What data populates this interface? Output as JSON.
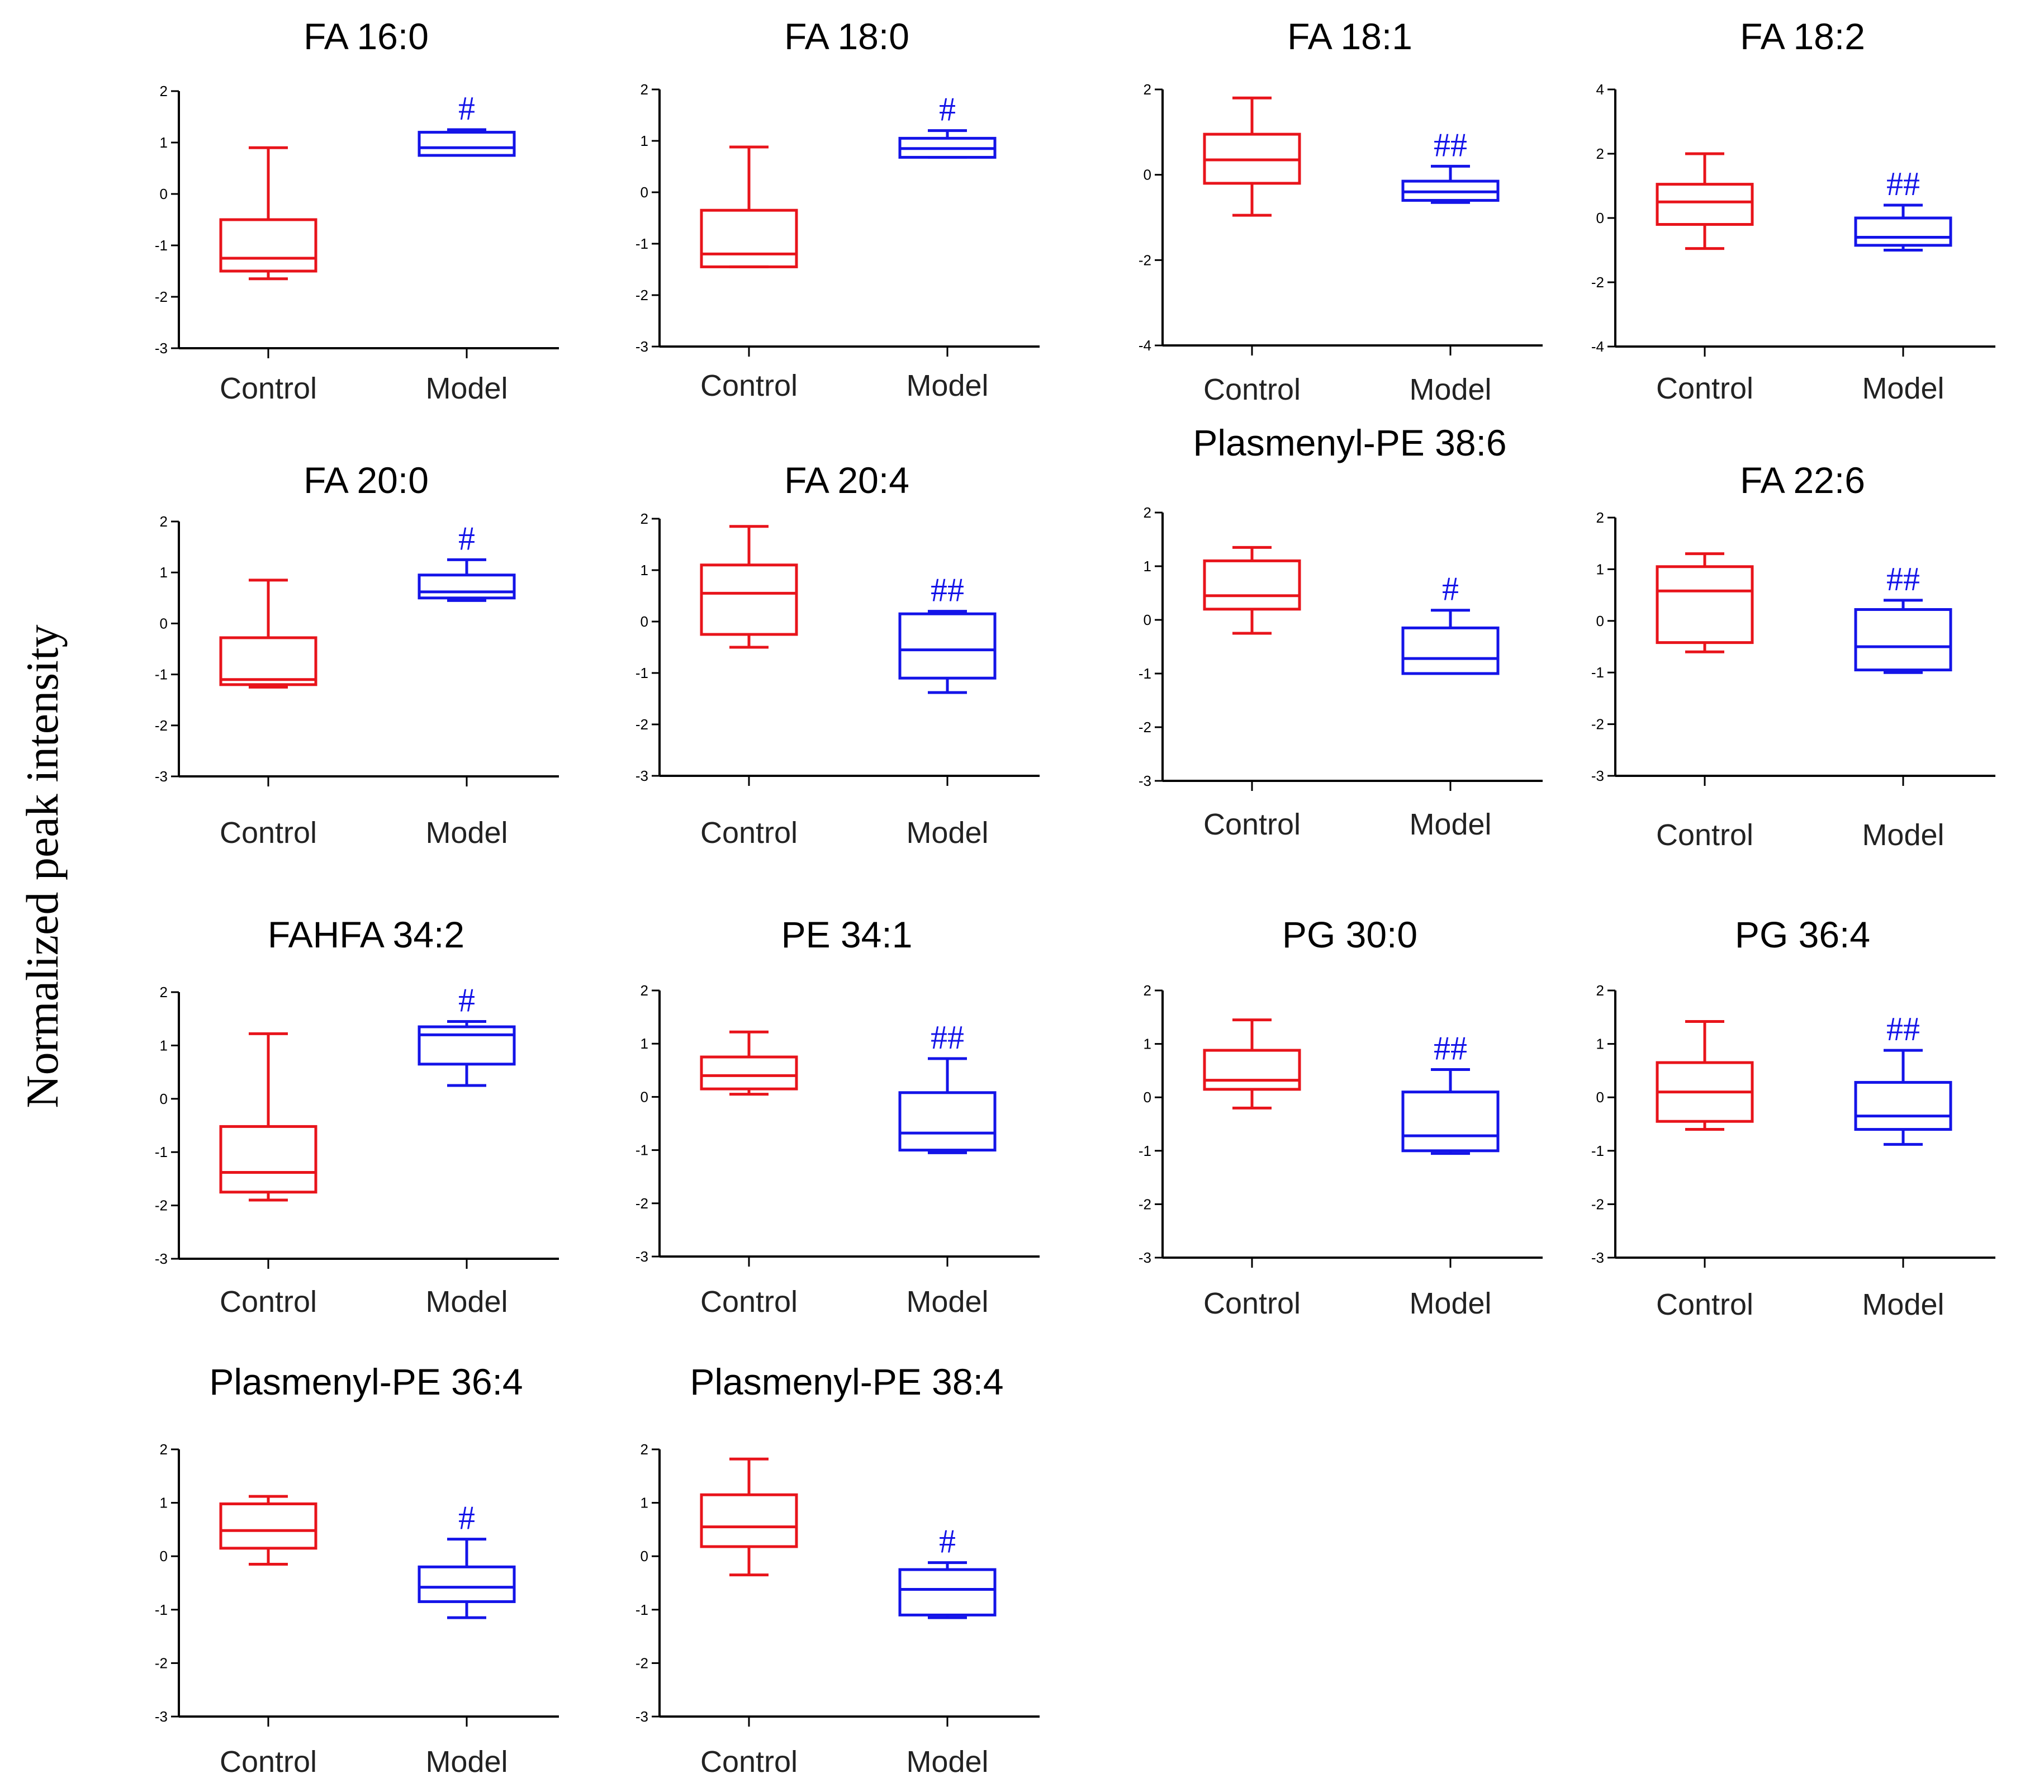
{
  "y_axis_label": "Normalized peak intensity",
  "colors": {
    "control": "#e8141b",
    "model": "#1414e8",
    "sig": "#1414e8"
  },
  "chart_data": [
    {
      "type": "box",
      "title": "FA 16:0",
      "categories": [
        "Control",
        "Model"
      ],
      "ylim": [
        -3,
        2
      ],
      "yticks": [
        2,
        1,
        0,
        -1,
        -2,
        -3
      ],
      "boxes": [
        {
          "group": "Control",
          "min": -1.65,
          "q1": -1.5,
          "median": -1.25,
          "q3": -0.5,
          "max": 0.9
        },
        {
          "group": "Model",
          "min": 0.75,
          "q1": 0.75,
          "median": 0.9,
          "q3": 1.2,
          "max": 1.25
        }
      ],
      "significance": {
        "group": "Model",
        "label": "#"
      }
    },
    {
      "type": "box",
      "title": "FA 18:0",
      "categories": [
        "Control",
        "Model"
      ],
      "ylim": [
        -3,
        2
      ],
      "yticks": [
        2,
        1,
        0,
        -1,
        -2,
        -3
      ],
      "boxes": [
        {
          "group": "Control",
          "min": -1.45,
          "q1": -1.45,
          "median": -1.2,
          "q3": -0.35,
          "max": 0.88
        },
        {
          "group": "Model",
          "min": 0.68,
          "q1": 0.68,
          "median": 0.85,
          "q3": 1.05,
          "max": 1.2
        }
      ],
      "significance": {
        "group": "Model",
        "label": "#"
      }
    },
    {
      "type": "box",
      "title": "FA 18:1",
      "categories": [
        "Control",
        "Model"
      ],
      "ylim": [
        -4,
        2
      ],
      "yticks": [
        2,
        0,
        -2,
        -4
      ],
      "boxes": [
        {
          "group": "Control",
          "min": -0.95,
          "q1": -0.2,
          "median": 0.35,
          "q3": 0.95,
          "max": 1.8
        },
        {
          "group": "Model",
          "min": -0.65,
          "q1": -0.6,
          "median": -0.4,
          "q3": -0.15,
          "max": 0.2
        }
      ],
      "significance": {
        "group": "Model",
        "label": "##"
      }
    },
    {
      "type": "box",
      "title": "FA 18:2",
      "categories": [
        "Control",
        "Model"
      ],
      "ylim": [
        -4,
        4
      ],
      "yticks": [
        4,
        2,
        0,
        -2,
        -4
      ],
      "boxes": [
        {
          "group": "Control",
          "min": -0.95,
          "q1": -0.2,
          "median": 0.5,
          "q3": 1.05,
          "max": 2.0
        },
        {
          "group": "Model",
          "min": -1.0,
          "q1": -0.85,
          "median": -0.6,
          "q3": 0.0,
          "max": 0.4
        }
      ],
      "significance": {
        "group": "Model",
        "label": "##"
      }
    },
    {
      "type": "box",
      "title": "FA 20:0",
      "categories": [
        "Control",
        "Model"
      ],
      "ylim": [
        -3,
        2
      ],
      "yticks": [
        2,
        1,
        0,
        -1,
        -2,
        -3
      ],
      "boxes": [
        {
          "group": "Control",
          "min": -1.25,
          "q1": -1.2,
          "median": -1.1,
          "q3": -0.28,
          "max": 0.85
        },
        {
          "group": "Model",
          "min": 0.45,
          "q1": 0.5,
          "median": 0.62,
          "q3": 0.95,
          "max": 1.25
        }
      ],
      "significance": {
        "group": "Model",
        "label": "#"
      }
    },
    {
      "type": "box",
      "title": "FA 20:4",
      "categories": [
        "Control",
        "Model"
      ],
      "ylim": [
        -3,
        2
      ],
      "yticks": [
        2,
        1,
        0,
        -1,
        -2,
        -3
      ],
      "boxes": [
        {
          "group": "Control",
          "min": -0.5,
          "q1": -0.25,
          "median": 0.55,
          "q3": 1.1,
          "max": 1.85
        },
        {
          "group": "Model",
          "min": -1.38,
          "q1": -1.1,
          "median": -0.55,
          "q3": 0.15,
          "max": 0.2
        }
      ],
      "significance": {
        "group": "Model",
        "label": "##"
      }
    },
    {
      "type": "box",
      "title": "Plasmenyl-PE 38:6",
      "categories": [
        "Control",
        "Model"
      ],
      "ylim": [
        -3,
        2
      ],
      "yticks": [
        2,
        1,
        0,
        -1,
        -2,
        -3
      ],
      "boxes": [
        {
          "group": "Control",
          "min": -0.25,
          "q1": 0.2,
          "median": 0.45,
          "q3": 1.1,
          "max": 1.35
        },
        {
          "group": "Model",
          "min": -1.0,
          "q1": -1.0,
          "median": -0.72,
          "q3": -0.15,
          "max": 0.18
        }
      ],
      "significance": {
        "group": "Model",
        "label": "#"
      }
    },
    {
      "type": "box",
      "title": "FA 22:6",
      "categories": [
        "Control",
        "Model"
      ],
      "ylim": [
        -3,
        2
      ],
      "yticks": [
        2,
        1,
        0,
        -1,
        -2,
        -3
      ],
      "boxes": [
        {
          "group": "Control",
          "min": -0.6,
          "q1": -0.42,
          "median": 0.58,
          "q3": 1.05,
          "max": 1.3
        },
        {
          "group": "Model",
          "min": -1.0,
          "q1": -0.95,
          "median": -0.5,
          "q3": 0.22,
          "max": 0.4
        }
      ],
      "significance": {
        "group": "Model",
        "label": "##"
      }
    },
    {
      "type": "box",
      "title": "FAHFA 34:2",
      "categories": [
        "Control",
        "Model"
      ],
      "ylim": [
        -3,
        2
      ],
      "yticks": [
        2,
        1,
        0,
        -1,
        -2,
        -3
      ],
      "boxes": [
        {
          "group": "Control",
          "min": -1.9,
          "q1": -1.75,
          "median": -1.38,
          "q3": -0.52,
          "max": 1.22
        },
        {
          "group": "Model",
          "min": 0.25,
          "q1": 0.65,
          "median": 1.2,
          "q3": 1.35,
          "max": 1.45
        }
      ],
      "significance": {
        "group": "Model",
        "label": "#"
      }
    },
    {
      "type": "box",
      "title": "PE 34:1",
      "categories": [
        "Control",
        "Model"
      ],
      "ylim": [
        -3,
        2
      ],
      "yticks": [
        2,
        1,
        0,
        -1,
        -2,
        -3
      ],
      "boxes": [
        {
          "group": "Control",
          "min": 0.05,
          "q1": 0.15,
          "median": 0.4,
          "q3": 0.75,
          "max": 1.22
        },
        {
          "group": "Model",
          "min": -1.05,
          "q1": -1.0,
          "median": -0.68,
          "q3": 0.08,
          "max": 0.72
        }
      ],
      "significance": {
        "group": "Model",
        "label": "##"
      }
    },
    {
      "type": "box",
      "title": "PG 30:0",
      "categories": [
        "Control",
        "Model"
      ],
      "ylim": [
        -3,
        2
      ],
      "yticks": [
        2,
        1,
        0,
        -1,
        -2,
        -3
      ],
      "boxes": [
        {
          "group": "Control",
          "min": -0.2,
          "q1": 0.15,
          "median": 0.32,
          "q3": 0.88,
          "max": 1.45
        },
        {
          "group": "Model",
          "min": -1.05,
          "q1": -1.0,
          "median": -0.72,
          "q3": 0.1,
          "max": 0.52
        }
      ],
      "significance": {
        "group": "Model",
        "label": "##"
      }
    },
    {
      "type": "box",
      "title": "PG 36:4",
      "categories": [
        "Control",
        "Model"
      ],
      "ylim": [
        -3,
        2
      ],
      "yticks": [
        2,
        1,
        0,
        -1,
        -2,
        -3
      ],
      "boxes": [
        {
          "group": "Control",
          "min": -0.6,
          "q1": -0.45,
          "median": 0.1,
          "q3": 0.65,
          "max": 1.42
        },
        {
          "group": "Model",
          "min": -0.88,
          "q1": -0.6,
          "median": -0.35,
          "q3": 0.28,
          "max": 0.88
        }
      ],
      "significance": {
        "group": "Model",
        "label": "##"
      }
    },
    {
      "type": "box",
      "title": "Plasmenyl-PE 36:4",
      "categories": [
        "Control",
        "Model"
      ],
      "ylim": [
        -3,
        2
      ],
      "yticks": [
        2,
        1,
        0,
        -1,
        -2,
        -3
      ],
      "boxes": [
        {
          "group": "Control",
          "min": -0.15,
          "q1": 0.15,
          "median": 0.48,
          "q3": 0.98,
          "max": 1.12
        },
        {
          "group": "Model",
          "min": -1.15,
          "q1": -0.85,
          "median": -0.58,
          "q3": -0.2,
          "max": 0.32
        }
      ],
      "significance": {
        "group": "Model",
        "label": "#"
      }
    },
    {
      "type": "box",
      "title": "Plasmenyl-PE 38:4",
      "categories": [
        "Control",
        "Model"
      ],
      "ylim": [
        -3,
        2
      ],
      "yticks": [
        2,
        1,
        0,
        -1,
        -2,
        -3
      ],
      "boxes": [
        {
          "group": "Control",
          "min": -0.35,
          "q1": 0.18,
          "median": 0.55,
          "q3": 1.15,
          "max": 1.82
        },
        {
          "group": "Model",
          "min": -1.15,
          "q1": -1.1,
          "median": -0.62,
          "q3": -0.25,
          "max": -0.12
        }
      ],
      "significance": {
        "group": "Model",
        "label": "#"
      }
    }
  ]
}
